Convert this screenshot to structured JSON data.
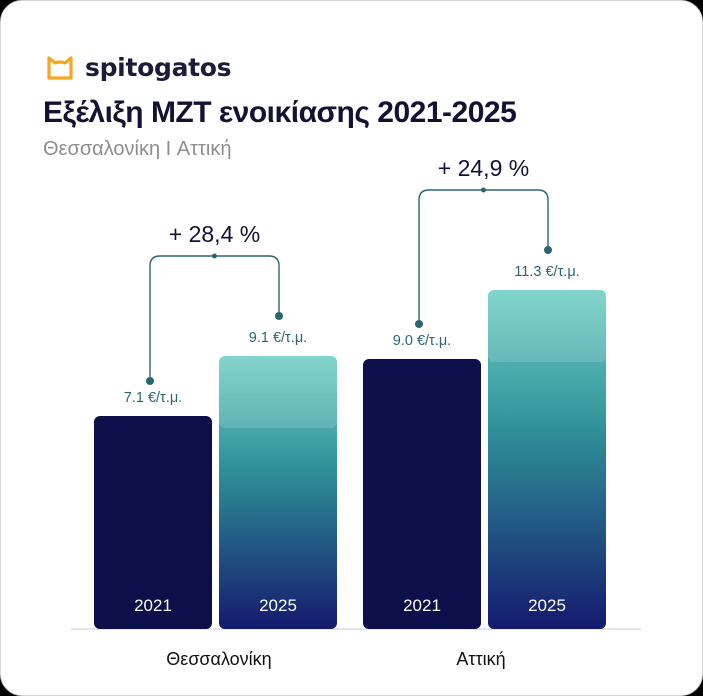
{
  "brand": {
    "name": "spitogatos",
    "icon": "cat-head-icon",
    "icon_color": "#f5a623"
  },
  "chart_data": {
    "type": "bar",
    "title": "Εξέλιξη ΜΖΤ ενοικίασης 2021-2025",
    "subtitle": "Θεσσαλονίκη I Αττική",
    "categories": [
      "Θεσσαλονίκη",
      "Αττική"
    ],
    "series": [
      {
        "name": "2021",
        "values": [
          7.1,
          9.0
        ],
        "labels": [
          "7.1 €/τ.μ.",
          "9.0 €/τ.μ."
        ],
        "color": "#0c0f4a"
      },
      {
        "name": "2025",
        "values": [
          9.1,
          11.3
        ],
        "labels": [
          "9.1 €/τ.μ.",
          "11.3 €/τ.μ."
        ],
        "gradient": [
          "#6fcfc5",
          "#2f8f98",
          "#141a6e"
        ]
      }
    ],
    "changes": [
      "+ 28,4 %",
      "+ 24,9 %"
    ],
    "unit": "€/τ.μ.",
    "xlabel": "",
    "ylabel": "",
    "grid": false,
    "legend": "none"
  }
}
